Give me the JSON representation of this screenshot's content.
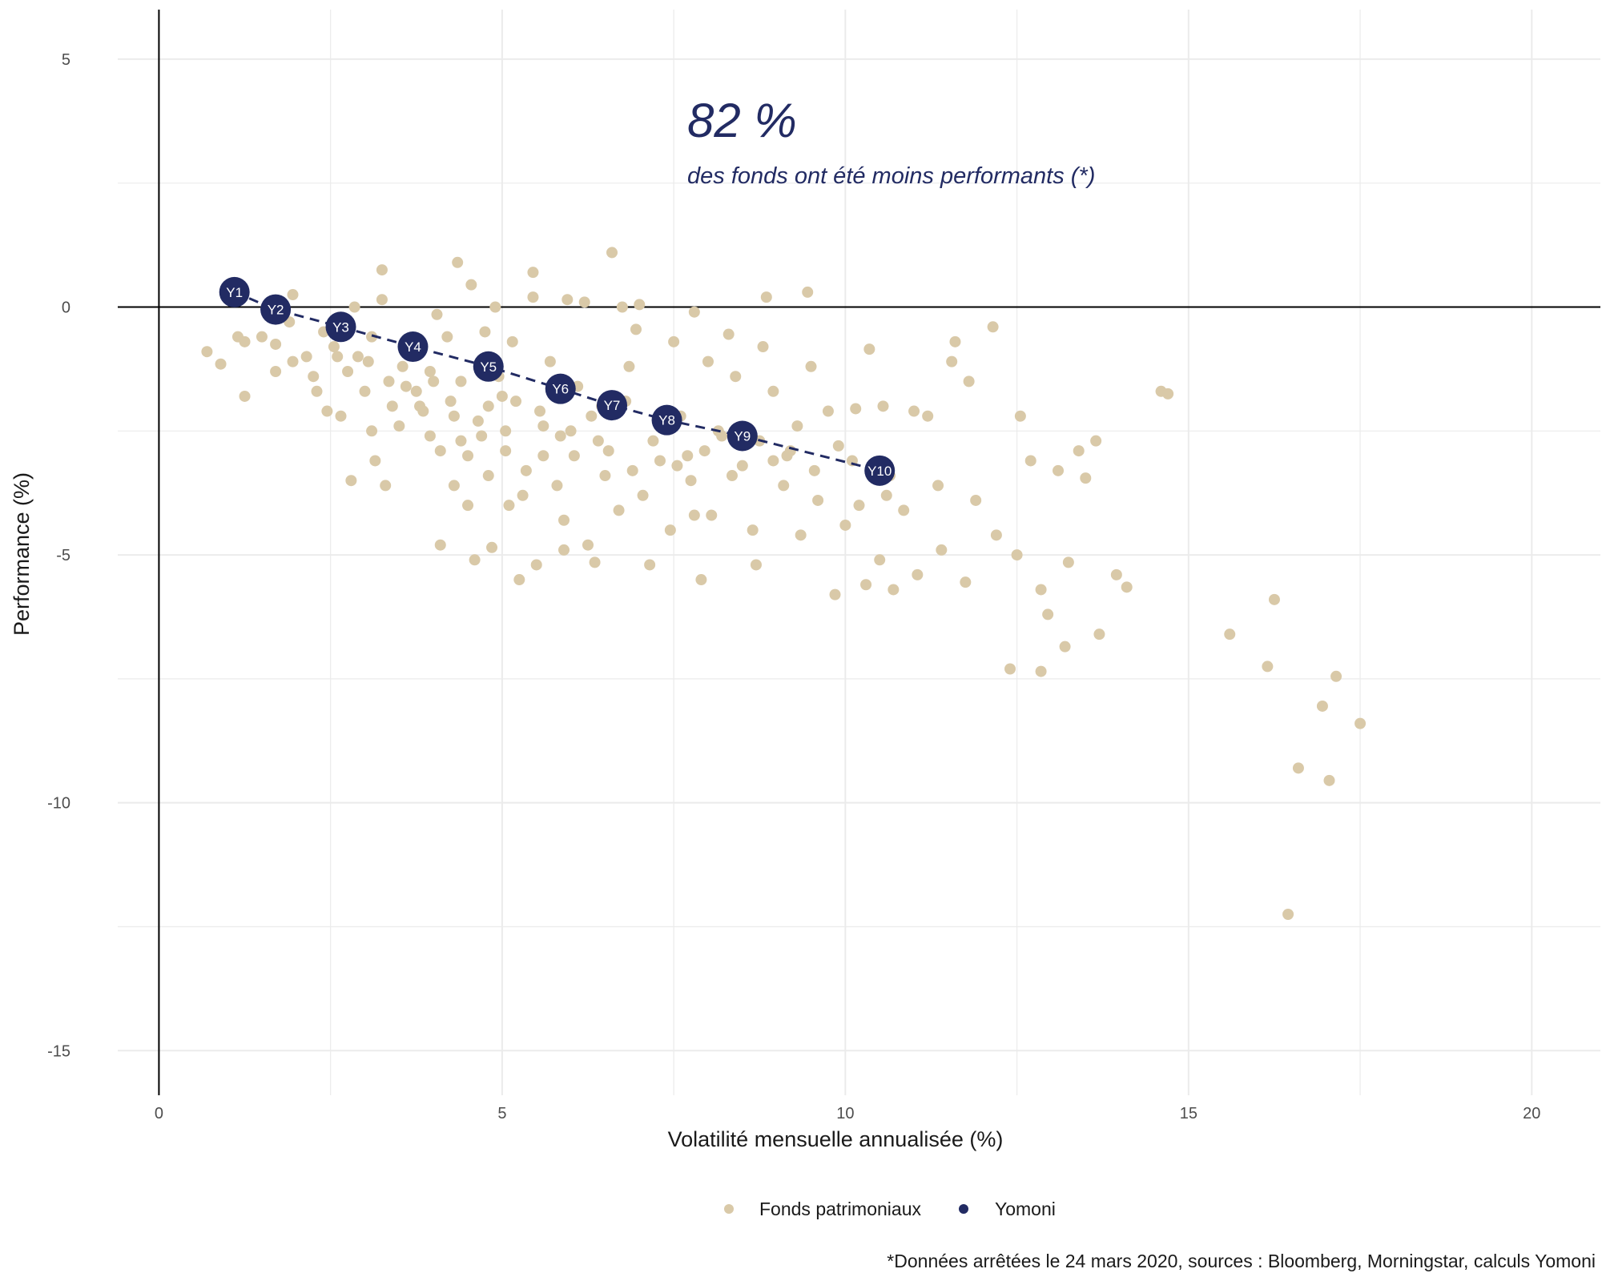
{
  "chart_data": {
    "type": "scatter",
    "xlabel": "Volatilité mensuelle annualisée (%)",
    "ylabel": "Performance (%)",
    "xlim": [
      -0.6,
      21
    ],
    "ylim": [
      -15.9,
      6
    ],
    "x_ticks": [
      0,
      5,
      10,
      15,
      20
    ],
    "y_ticks": [
      5,
      0,
      -5,
      -10,
      -15
    ],
    "grid": true,
    "legend_position": "bottom",
    "annotation": {
      "headline": "82 %",
      "subtitle": "des fonds ont été moins performants (*)"
    },
    "caption": "*Données arrêtées le 24 mars 2020, sources : Bloomberg, Morningstar, calculs Yomoni",
    "colors": {
      "funds": "#d9c9a8",
      "yomoni": "#222b63",
      "axis": "#000000",
      "grid": "#ebebeb"
    },
    "series": [
      {
        "name": "Fonds patrimoniaux",
        "points": [
          [
            0.7,
            -0.9
          ],
          [
            0.9,
            -1.15
          ],
          [
            1.15,
            -0.6
          ],
          [
            1.25,
            -1.8
          ],
          [
            1.25,
            -0.7
          ],
          [
            1.5,
            -0.6
          ],
          [
            1.7,
            -1.3
          ],
          [
            1.7,
            -0.75
          ],
          [
            1.95,
            0.25
          ],
          [
            1.9,
            -0.3
          ],
          [
            1.95,
            -1.1
          ],
          [
            2.15,
            -1.0
          ],
          [
            2.25,
            -1.4
          ],
          [
            2.3,
            -1.7
          ],
          [
            2.4,
            -0.5
          ],
          [
            2.45,
            -2.1
          ],
          [
            2.65,
            -2.2
          ],
          [
            2.55,
            -0.8
          ],
          [
            2.85,
            0.0
          ],
          [
            2.9,
            -1.0
          ],
          [
            3.0,
            -1.7
          ],
          [
            3.1,
            -2.5
          ],
          [
            3.15,
            -3.1
          ],
          [
            2.8,
            -3.5
          ],
          [
            3.25,
            0.75
          ],
          [
            3.25,
            0.15
          ],
          [
            3.3,
            -3.6
          ],
          [
            3.1,
            -0.6
          ],
          [
            3.4,
            -2.0
          ],
          [
            3.5,
            -2.4
          ],
          [
            3.6,
            -1.6
          ],
          [
            3.7,
            -0.9
          ],
          [
            3.85,
            -2.1
          ],
          [
            3.95,
            -1.3
          ],
          [
            4.05,
            -0.15
          ],
          [
            4.1,
            -2.9
          ],
          [
            4.1,
            -4.8
          ],
          [
            4.2,
            -0.6
          ],
          [
            4.3,
            -2.2
          ],
          [
            4.35,
            0.9
          ],
          [
            4.4,
            -1.5
          ],
          [
            4.5,
            -3.0
          ],
          [
            4.5,
            -4.0
          ],
          [
            4.55,
            0.45
          ],
          [
            4.6,
            -5.1
          ],
          [
            4.7,
            -2.6
          ],
          [
            4.75,
            -0.5
          ],
          [
            4.8,
            -3.4
          ],
          [
            4.85,
            -4.85
          ],
          [
            4.9,
            0.0
          ],
          [
            5.0,
            -1.8
          ],
          [
            5.05,
            -2.9
          ],
          [
            5.15,
            -0.7
          ],
          [
            5.25,
            -5.5
          ],
          [
            5.3,
            -3.8
          ],
          [
            5.45,
            0.7
          ],
          [
            5.45,
            0.2
          ],
          [
            5.5,
            -5.2
          ],
          [
            5.6,
            -2.4
          ],
          [
            5.7,
            -1.1
          ],
          [
            5.8,
            -3.6
          ],
          [
            5.9,
            -4.9
          ],
          [
            5.95,
            0.15
          ],
          [
            6.1,
            -1.6
          ],
          [
            6.2,
            0.1
          ],
          [
            6.25,
            -4.8
          ],
          [
            6.35,
            -5.15
          ],
          [
            6.4,
            -2.7
          ],
          [
            6.5,
            -3.4
          ],
          [
            6.6,
            1.1
          ],
          [
            6.75,
            0.0
          ],
          [
            6.85,
            -1.2
          ],
          [
            6.95,
            -0.45
          ],
          [
            7.0,
            0.05
          ],
          [
            7.15,
            -5.2
          ],
          [
            7.3,
            -3.1
          ],
          [
            7.5,
            -0.7
          ],
          [
            7.6,
            -2.2
          ],
          [
            7.75,
            -3.5
          ],
          [
            7.8,
            -4.2
          ],
          [
            7.8,
            -0.1
          ],
          [
            7.9,
            -5.5
          ],
          [
            8.0,
            -1.1
          ],
          [
            8.15,
            -2.5
          ],
          [
            8.3,
            -0.55
          ],
          [
            8.4,
            -1.4
          ],
          [
            8.5,
            -3.2
          ],
          [
            8.65,
            -4.5
          ],
          [
            8.7,
            -5.2
          ],
          [
            8.8,
            -0.8
          ],
          [
            8.85,
            0.2
          ],
          [
            8.95,
            -1.7
          ],
          [
            9.1,
            -3.6
          ],
          [
            9.2,
            -2.9
          ],
          [
            9.35,
            -4.6
          ],
          [
            9.45,
            0.3
          ],
          [
            9.5,
            -1.2
          ],
          [
            9.6,
            -3.9
          ],
          [
            9.75,
            -2.1
          ],
          [
            9.85,
            -5.8
          ],
          [
            10.0,
            -4.4
          ],
          [
            10.15,
            -2.05
          ],
          [
            10.3,
            -5.6
          ],
          [
            10.35,
            -0.85
          ],
          [
            10.5,
            -5.1
          ],
          [
            10.55,
            -2.0
          ],
          [
            10.6,
            -3.8
          ],
          [
            10.7,
            -5.7
          ],
          [
            10.85,
            -4.1
          ],
          [
            11.0,
            -2.1
          ],
          [
            11.05,
            -5.4
          ],
          [
            11.2,
            -2.2
          ],
          [
            11.35,
            -3.6
          ],
          [
            11.4,
            -4.9
          ],
          [
            11.55,
            -1.1
          ],
          [
            11.6,
            -0.7
          ],
          [
            11.75,
            -5.55
          ],
          [
            11.8,
            -1.5
          ],
          [
            11.9,
            -3.9
          ],
          [
            12.15,
            -0.4
          ],
          [
            12.2,
            -4.6
          ],
          [
            12.4,
            -7.3
          ],
          [
            12.5,
            -5.0
          ],
          [
            12.55,
            -2.2
          ],
          [
            12.7,
            -3.1
          ],
          [
            12.85,
            -5.7
          ],
          [
            12.85,
            -7.35
          ],
          [
            12.95,
            -6.2
          ],
          [
            13.1,
            -3.3
          ],
          [
            13.2,
            -6.85
          ],
          [
            13.25,
            -5.15
          ],
          [
            13.4,
            -2.9
          ],
          [
            13.5,
            -3.45
          ],
          [
            13.65,
            -2.7
          ],
          [
            13.7,
            -6.6
          ],
          [
            13.95,
            -5.4
          ],
          [
            14.1,
            -5.65
          ],
          [
            14.6,
            -1.7
          ],
          [
            14.7,
            -1.75
          ],
          [
            15.6,
            -6.6
          ],
          [
            16.15,
            -7.25
          ],
          [
            16.25,
            -5.9
          ],
          [
            16.45,
            -12.25
          ],
          [
            16.6,
            -9.3
          ],
          [
            16.95,
            -8.05
          ],
          [
            17.05,
            -9.55
          ],
          [
            17.15,
            -7.45
          ],
          [
            17.5,
            -8.4
          ],
          [
            10.65,
            -3.4
          ],
          [
            10.2,
            -4.0
          ],
          [
            9.9,
            -2.8
          ],
          [
            9.3,
            -2.4
          ],
          [
            8.95,
            -3.1
          ],
          [
            8.2,
            -2.6
          ],
          [
            7.7,
            -3.0
          ],
          [
            7.35,
            -2.4
          ],
          [
            7.05,
            -3.8
          ],
          [
            6.8,
            -1.9
          ],
          [
            6.55,
            -2.9
          ],
          [
            6.3,
            -2.2
          ],
          [
            6.05,
            -3.0
          ],
          [
            5.85,
            -2.6
          ],
          [
            5.55,
            -2.1
          ],
          [
            5.35,
            -3.3
          ],
          [
            5.05,
            -2.5
          ],
          [
            4.95,
            -1.4
          ],
          [
            4.65,
            -2.3
          ],
          [
            4.25,
            -1.9
          ],
          [
            3.95,
            -2.6
          ],
          [
            3.75,
            -1.7
          ],
          [
            3.55,
            -1.2
          ],
          [
            3.35,
            -1.5
          ],
          [
            3.05,
            -1.1
          ],
          [
            2.75,
            -1.3
          ],
          [
            2.6,
            -1.0
          ],
          [
            3.8,
            -2.0
          ],
          [
            4.0,
            -1.5
          ],
          [
            4.4,
            -2.7
          ],
          [
            4.8,
            -2.0
          ],
          [
            5.2,
            -1.9
          ],
          [
            5.6,
            -3.0
          ],
          [
            6.0,
            -2.5
          ],
          [
            6.45,
            -2.0
          ],
          [
            6.9,
            -3.3
          ],
          [
            7.2,
            -2.7
          ],
          [
            7.55,
            -3.2
          ],
          [
            7.95,
            -2.9
          ],
          [
            8.35,
            -3.4
          ],
          [
            8.75,
            -2.7
          ],
          [
            9.15,
            -3.0
          ],
          [
            9.55,
            -3.3
          ],
          [
            10.1,
            -3.1
          ],
          [
            6.7,
            -4.1
          ],
          [
            5.9,
            -4.3
          ],
          [
            5.1,
            -4.0
          ],
          [
            4.3,
            -3.6
          ],
          [
            7.45,
            -4.5
          ],
          [
            8.05,
            -4.2
          ]
        ]
      },
      {
        "name": "Yomoni",
        "points": [
          {
            "label": "Y1",
            "x": 1.1,
            "y": 0.3
          },
          {
            "label": "Y2",
            "x": 1.7,
            "y": -0.05
          },
          {
            "label": "Y3",
            "x": 2.65,
            "y": -0.4
          },
          {
            "label": "Y4",
            "x": 3.7,
            "y": -0.8
          },
          {
            "label": "Y5",
            "x": 4.8,
            "y": -1.2
          },
          {
            "label": "Y6",
            "x": 5.85,
            "y": -1.65
          },
          {
            "label": "Y7",
            "x": 6.6,
            "y": -1.98
          },
          {
            "label": "Y8",
            "x": 7.4,
            "y": -2.28
          },
          {
            "label": "Y9",
            "x": 8.5,
            "y": -2.6
          },
          {
            "label": "Y10",
            "x": 10.5,
            "y": -3.3
          }
        ]
      }
    ]
  }
}
